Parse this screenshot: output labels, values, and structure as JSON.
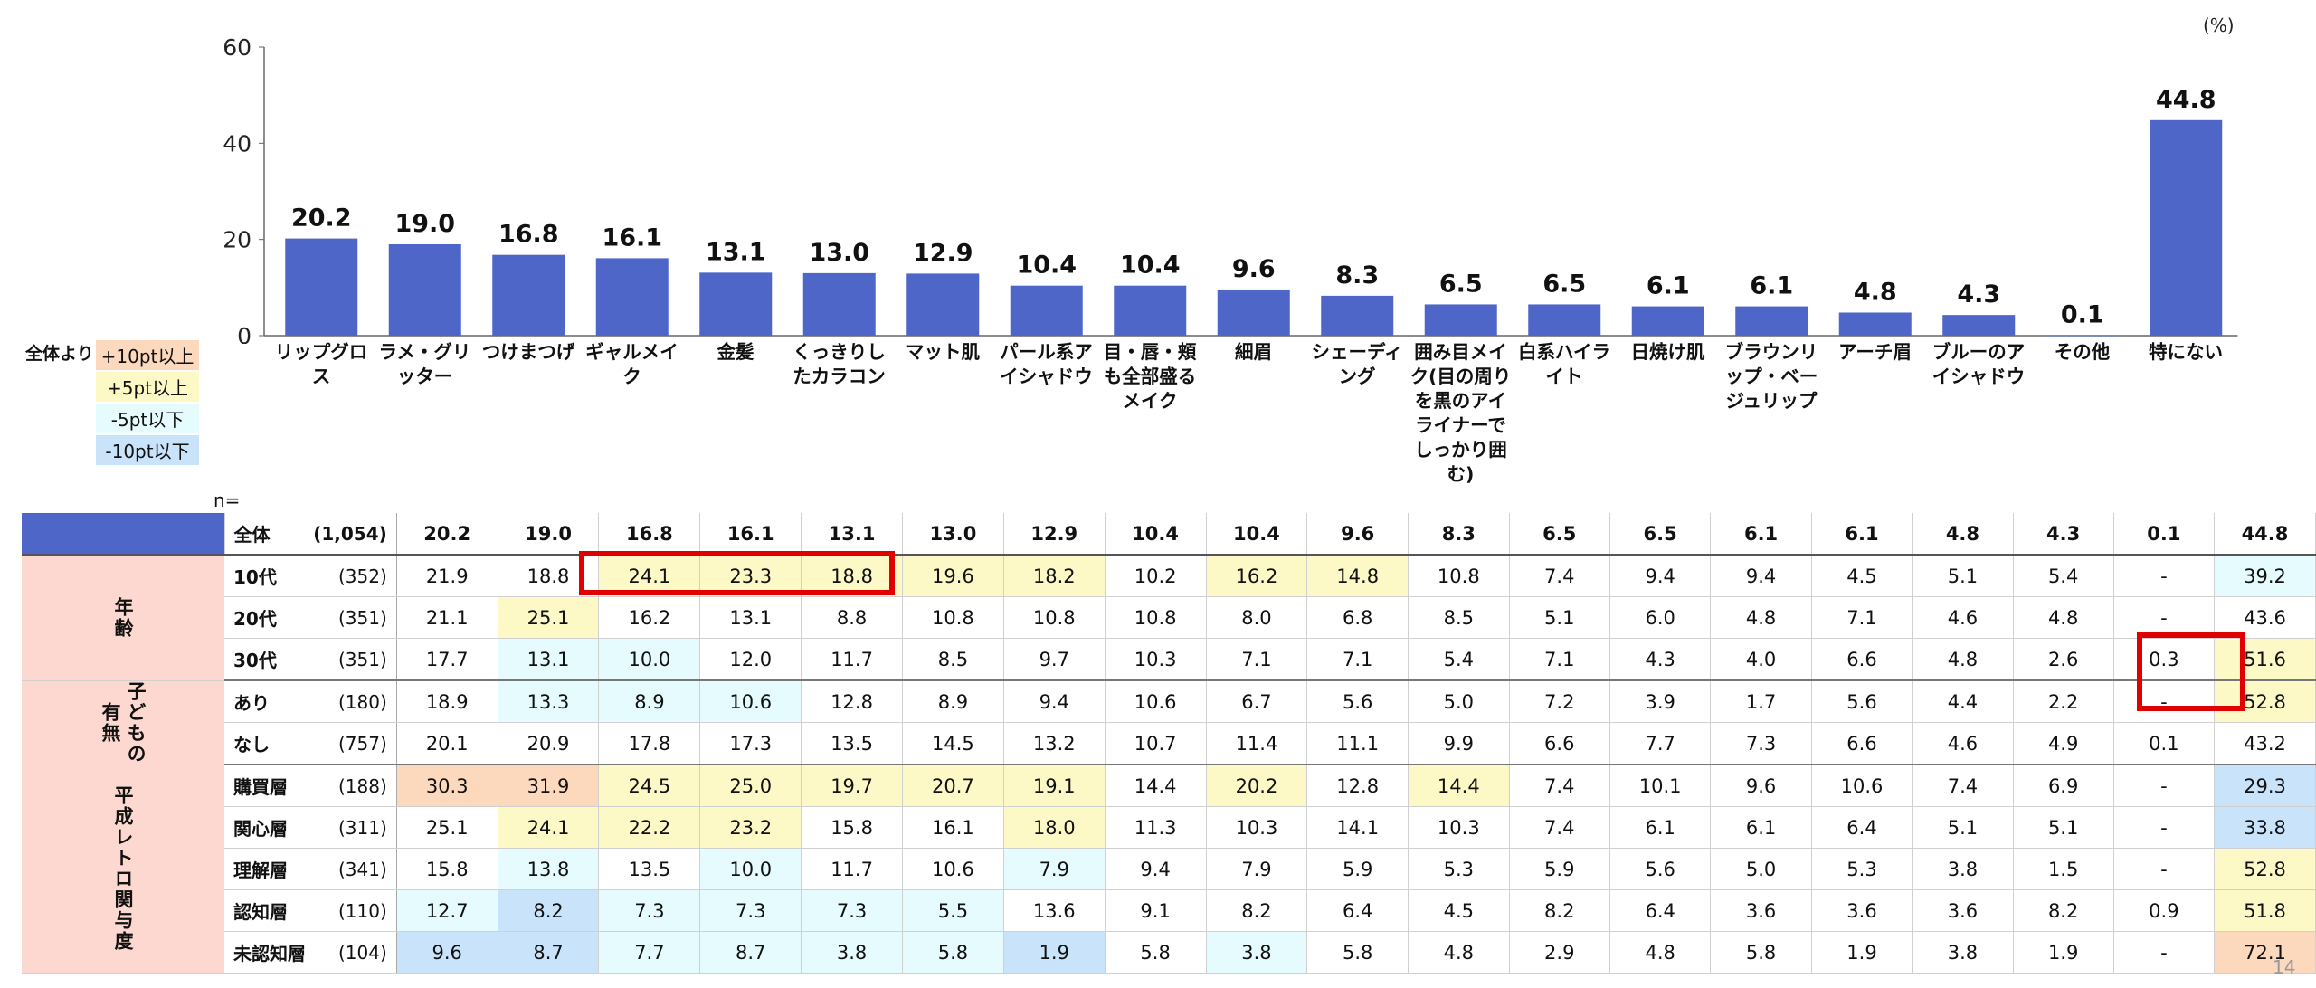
{
  "unit_label": "(%)",
  "page_number": "14",
  "legend": {
    "heading": "全体より",
    "items": [
      {
        "label": "+10pt以上",
        "color": "#fcd8bd"
      },
      {
        "label": "+5pt以上",
        "color": "#fdf9c6"
      },
      {
        "label": "-5pt以下",
        "color": "#e6fbfd"
      },
      {
        "label": "-10pt以下",
        "color": "#c9e3fb"
      }
    ]
  },
  "n_label": "n=",
  "chart_data": {
    "type": "bar",
    "categories": [
      "リップグロス",
      "ラメ・グリッター",
      "つけまつげ",
      "ギャルメイク",
      "金髪",
      "くっきりしたカラコン",
      "マット肌",
      "パール系アイシャドウ",
      "目・唇・頬も全部盛るメイク",
      "細眉",
      "シェーディング",
      "囲み目メイク(目の周りを黒のアイライナーでしっかり囲む)",
      "白系ハイライト",
      "日焼け肌",
      "ブラウンリップ・ベージュリップ",
      "アーチ眉",
      "ブルーのアイシャドウ",
      "その他",
      "特にない"
    ],
    "values": [
      20.2,
      19.0,
      16.8,
      16.1,
      13.1,
      13.0,
      12.9,
      10.4,
      10.4,
      9.6,
      8.3,
      6.5,
      6.5,
      6.1,
      6.1,
      4.8,
      4.3,
      0.1,
      44.8
    ],
    "value_labels": [
      "20.2",
      "19.0",
      "16.8",
      "16.1",
      "13.1",
      "13.0",
      "12.9",
      "10.4",
      "10.4",
      "9.6",
      "8.3",
      "6.5",
      "6.5",
      "6.1",
      "6.1",
      "4.8",
      "4.3",
      "0.1",
      "44.8"
    ],
    "ylim": [
      0,
      60
    ],
    "yticks": [
      0,
      20,
      40,
      60
    ],
    "bar_color": "#4e66c8",
    "grid": false
  },
  "table": {
    "total": {
      "label": "全体",
      "n": "(1,054)",
      "values": [
        "20.2",
        "19.0",
        "16.8",
        "16.1",
        "13.1",
        "13.0",
        "12.9",
        "10.4",
        "10.4",
        "9.6",
        "8.3",
        "6.5",
        "6.5",
        "6.1",
        "6.1",
        "4.8",
        "4.3",
        "0.1",
        "44.8"
      ]
    },
    "groups": [
      {
        "label": "年齢",
        "rows": [
          {
            "label": "10代",
            "n": "(352)",
            "values": [
              "21.9",
              "18.8",
              "24.1",
              "23.3",
              "18.8",
              "19.6",
              "18.2",
              "10.2",
              "16.2",
              "14.8",
              "10.8",
              "7.4",
              "9.4",
              "9.4",
              "4.5",
              "5.1",
              "5.4",
              "-",
              "39.2"
            ],
            "hl": [
              "",
              "",
              "hl5",
              "hl5",
              "hl5",
              "hl5",
              "hl5",
              "",
              "hl5",
              "hl5",
              "",
              "",
              "",
              "",
              "",
              "",
              "",
              "",
              "lo5"
            ]
          },
          {
            "label": "20代",
            "n": "(351)",
            "values": [
              "21.1",
              "25.1",
              "16.2",
              "13.1",
              "8.8",
              "10.8",
              "10.8",
              "10.8",
              "8.0",
              "6.8",
              "8.5",
              "5.1",
              "6.0",
              "4.8",
              "7.1",
              "4.6",
              "4.8",
              "-",
              "43.6"
            ],
            "hl": [
              "",
              "hl5",
              "",
              "",
              "",
              "",
              "",
              "",
              "",
              "",
              "",
              "",
              "",
              "",
              "",
              "",
              "",
              "",
              ""
            ]
          },
          {
            "label": "30代",
            "n": "(351)",
            "values": [
              "17.7",
              "13.1",
              "10.0",
              "12.0",
              "11.7",
              "8.5",
              "9.7",
              "10.3",
              "7.1",
              "7.1",
              "5.4",
              "7.1",
              "4.3",
              "4.0",
              "6.6",
              "4.8",
              "2.6",
              "0.3",
              "51.6"
            ],
            "hl": [
              "",
              "lo5",
              "lo5",
              "",
              "",
              "",
              "",
              "",
              "",
              "",
              "",
              "",
              "",
              "",
              "",
              "",
              "",
              "",
              "hl5"
            ]
          }
        ]
      },
      {
        "label": "子どもの有無",
        "rows": [
          {
            "label": "あり",
            "n": "(180)",
            "values": [
              "18.9",
              "13.3",
              "8.9",
              "10.6",
              "12.8",
              "8.9",
              "9.4",
              "10.6",
              "6.7",
              "5.6",
              "5.0",
              "7.2",
              "3.9",
              "1.7",
              "5.6",
              "4.4",
              "2.2",
              "-",
              "52.8"
            ],
            "hl": [
              "",
              "lo5",
              "lo5",
              "lo5",
              "",
              "",
              "",
              "",
              "",
              "",
              "",
              "",
              "",
              "",
              "",
              "",
              "",
              "",
              "hl5"
            ]
          },
          {
            "label": "なし",
            "n": "(757)",
            "values": [
              "20.1",
              "20.9",
              "17.8",
              "17.3",
              "13.5",
              "14.5",
              "13.2",
              "10.7",
              "11.4",
              "11.1",
              "9.9",
              "6.6",
              "7.7",
              "7.3",
              "6.6",
              "4.6",
              "4.9",
              "0.1",
              "43.2"
            ],
            "hl": [
              "",
              "",
              "",
              "",
              "",
              "",
              "",
              "",
              "",
              "",
              "",
              "",
              "",
              "",
              "",
              "",
              "",
              "",
              ""
            ]
          }
        ]
      },
      {
        "label": "平成レトロ関与度",
        "rows": [
          {
            "label": "購買層",
            "n": "(188)",
            "values": [
              "30.3",
              "31.9",
              "24.5",
              "25.0",
              "19.7",
              "20.7",
              "19.1",
              "14.4",
              "20.2",
              "12.8",
              "14.4",
              "7.4",
              "10.1",
              "9.6",
              "10.6",
              "7.4",
              "6.9",
              "-",
              "29.3"
            ],
            "hl": [
              "hl10",
              "hl10",
              "hl5",
              "hl5",
              "hl5",
              "hl5",
              "hl5",
              "",
              "hl5",
              "",
              "hl5",
              "",
              "",
              "",
              "",
              "",
              "",
              "",
              "lo10"
            ]
          },
          {
            "label": "関心層",
            "n": "(311)",
            "values": [
              "25.1",
              "24.1",
              "22.2",
              "23.2",
              "15.8",
              "16.1",
              "18.0",
              "11.3",
              "10.3",
              "14.1",
              "10.3",
              "7.4",
              "6.1",
              "6.1",
              "6.4",
              "5.1",
              "5.1",
              "-",
              "33.8"
            ],
            "hl": [
              "",
              "hl5",
              "hl5",
              "hl5",
              "",
              "",
              "hl5",
              "",
              "",
              "",
              "",
              "",
              "",
              "",
              "",
              "",
              "",
              "",
              "lo10"
            ]
          },
          {
            "label": "理解層",
            "n": "(341)",
            "values": [
              "15.8",
              "13.8",
              "13.5",
              "10.0",
              "11.7",
              "10.6",
              "7.9",
              "9.4",
              "7.9",
              "5.9",
              "5.3",
              "5.9",
              "5.6",
              "5.0",
              "5.3",
              "3.8",
              "1.5",
              "-",
              "52.8"
            ],
            "hl": [
              "",
              "lo5",
              "",
              "lo5",
              "",
              "",
              "lo5",
              "",
              "",
              "",
              "",
              "",
              "",
              "",
              "",
              "",
              "",
              "",
              "hl5"
            ]
          },
          {
            "label": "認知層",
            "n": "(110)",
            "values": [
              "12.7",
              "8.2",
              "7.3",
              "7.3",
              "7.3",
              "5.5",
              "13.6",
              "9.1",
              "8.2",
              "6.4",
              "4.5",
              "8.2",
              "6.4",
              "3.6",
              "3.6",
              "3.6",
              "8.2",
              "0.9",
              "51.8"
            ],
            "hl": [
              "lo5",
              "lo10",
              "lo5",
              "lo5",
              "lo5",
              "lo5",
              "",
              "",
              "",
              "",
              "",
              "",
              "",
              "",
              "",
              "",
              "",
              "",
              "hl5"
            ]
          },
          {
            "label": "未認知層",
            "n": "(104)",
            "values": [
              "9.6",
              "8.7",
              "7.7",
              "8.7",
              "3.8",
              "5.8",
              "1.9",
              "5.8",
              "3.8",
              "5.8",
              "4.8",
              "2.9",
              "4.8",
              "5.8",
              "1.9",
              "3.8",
              "1.9",
              "-",
              "72.1"
            ],
            "hl": [
              "lo10",
              "lo10",
              "lo5",
              "lo5",
              "lo5",
              "lo5",
              "lo10",
              "",
              "lo5",
              "",
              "",
              "",
              "",
              "",
              "",
              "",
              "",
              "",
              "hl10"
            ]
          }
        ]
      }
    ]
  }
}
